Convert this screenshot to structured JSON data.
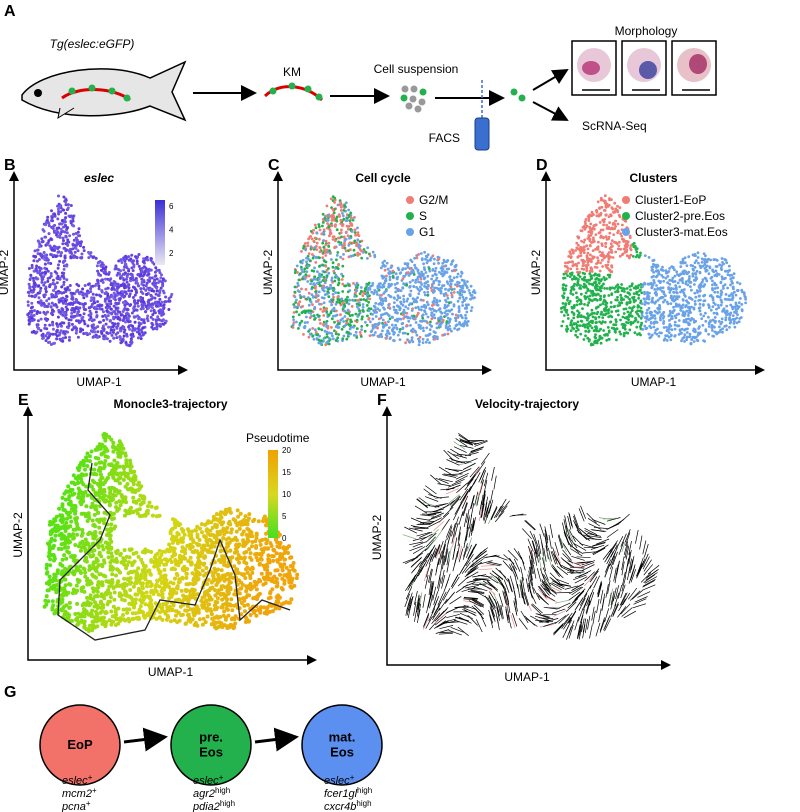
{
  "panels": {
    "A": {
      "letter": "A",
      "fish_label": "Tg(eslec:eGFP)",
      "km": "KM",
      "cell_suspension": "Cell suspension",
      "facs": "FACS",
      "morphology": "Morphology",
      "scrna": "ScRNA-Seq"
    },
    "B": {
      "letter": "B",
      "title": "eslec",
      "x_label": "UMAP-1",
      "y_label": "UMAP-2",
      "colorbar_ticks": [
        2,
        4,
        6
      ]
    },
    "C": {
      "letter": "C",
      "title": "Cell cycle",
      "x_label": "UMAP-1",
      "y_label": "UMAP-2",
      "legend": [
        {
          "name": "G2/M",
          "color": "#f07c74"
        },
        {
          "name": "S",
          "color": "#22b14c"
        },
        {
          "name": "G1",
          "color": "#6aa2e8"
        }
      ]
    },
    "D": {
      "letter": "D",
      "title": "Clusters",
      "x_label": "UMAP-1",
      "y_label": "UMAP-2",
      "legend": [
        {
          "name": "Cluster1-EoP",
          "color": "#f07c74"
        },
        {
          "name": "Cluster2-pre.Eos",
          "color": "#22b14c"
        },
        {
          "name": "Cluster3-mat.Eos",
          "color": "#6aa2e8"
        }
      ]
    },
    "E": {
      "letter": "E",
      "title": "Monocle3-trajectory",
      "x_label": "UMAP-1",
      "y_label": "UMAP-2",
      "colorbar_title": "Pseudotime",
      "colorbar_ticks": [
        0,
        5,
        10,
        15,
        20
      ]
    },
    "F": {
      "letter": "F",
      "title": "Velocity-trajectory",
      "x_label": "UMAP-1",
      "y_label": "UMAP-2"
    },
    "G": {
      "letter": "G",
      "nodes": [
        {
          "label": [
            "EoP"
          ],
          "color": "#f2726a",
          "markers": [
            {
              "gene": "eslec",
              "sup": "+"
            },
            {
              "gene": "mcm2",
              "sup": "+"
            },
            {
              "gene": "pcna",
              "sup": "+"
            }
          ]
        },
        {
          "label": [
            "pre.",
            "Eos"
          ],
          "color": "#22b14c",
          "markers": [
            {
              "gene": "eslec",
              "sup": "+"
            },
            {
              "gene": "agr2",
              "sup": "high"
            },
            {
              "gene": "pdia2",
              "sup": "high"
            }
          ]
        },
        {
          "label": [
            "mat.",
            "Eos"
          ],
          "color": "#5b8ff0",
          "markers": [
            {
              "gene": "eslec",
              "sup": "+"
            },
            {
              "gene": "fcer1gl",
              "sup": "high"
            },
            {
              "gene": "cxcr4b",
              "sup": "high"
            }
          ]
        }
      ]
    }
  }
}
